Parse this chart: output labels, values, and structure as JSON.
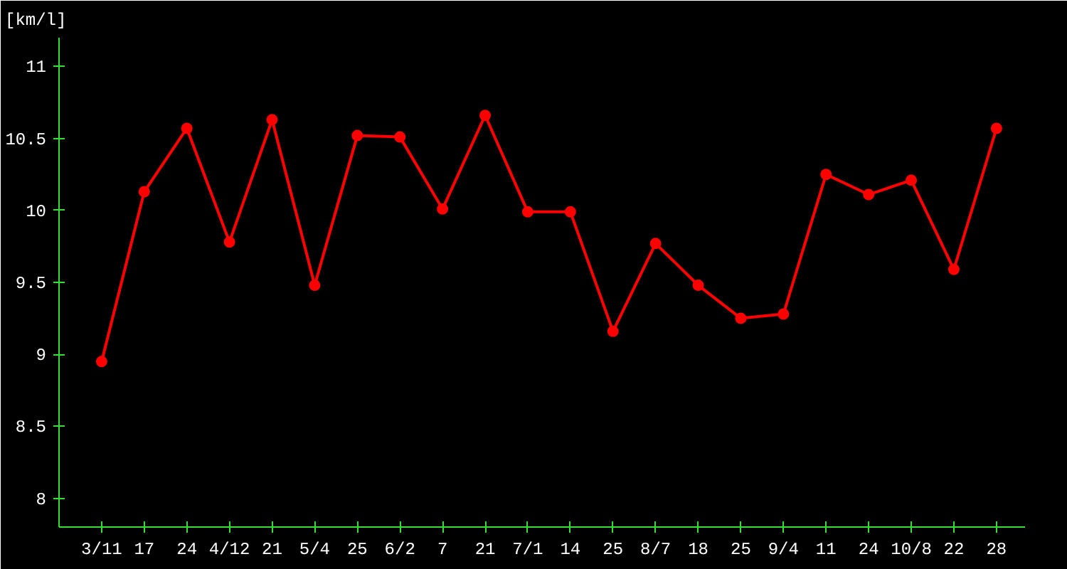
{
  "chart_data": {
    "type": "line",
    "ylabel": "[km/l]",
    "categories": [
      "3/11",
      "17",
      "24",
      "4/12",
      "21",
      "5/4",
      "25",
      "6/2",
      "7",
      "21",
      "7/1",
      "14",
      "25",
      "8/7",
      "18",
      "25",
      "9/4",
      "11",
      "24",
      "10/8",
      "22",
      "28"
    ],
    "series": [
      {
        "color": "#ff0000",
        "values": [
          8.95,
          10.13,
          10.57,
          9.78,
          10.63,
          9.48,
          10.52,
          10.51,
          10.01,
          10.66,
          9.99,
          9.99,
          9.16,
          9.77,
          9.48,
          9.25,
          9.28,
          10.25,
          10.11,
          10.21,
          9.59,
          10.57
        ]
      }
    ],
    "ylim": [
      7.8,
      11.2
    ],
    "yticks": [
      8,
      8.5,
      9,
      9.5,
      10,
      10.5,
      11
    ],
    "grid": false,
    "marker": "circle",
    "line_style": "solid"
  }
}
